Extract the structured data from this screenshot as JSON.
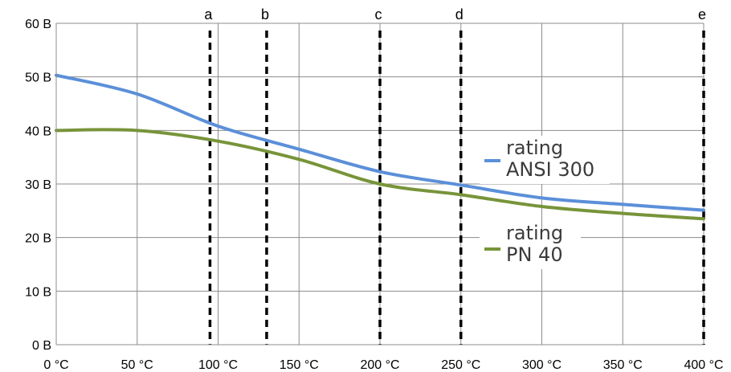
{
  "chart_data": {
    "type": "line",
    "x_unit": "°C",
    "y_unit": "B",
    "xlim": [
      0,
      400
    ],
    "ylim": [
      0,
      60
    ],
    "x_ticks": [
      0,
      50,
      100,
      150,
      200,
      250,
      300,
      350,
      400
    ],
    "y_ticks": [
      0,
      10,
      20,
      30,
      40,
      50,
      60
    ],
    "x_tick_labels": [
      "0 °C",
      "50 °C",
      "100 °C",
      "150 °C",
      "200 °C",
      "250 °C",
      "300 °C",
      "350 °C",
      "400 °C"
    ],
    "y_tick_labels": [
      "0 B",
      "10 B",
      "20 B",
      "30 B",
      "40 B",
      "50 B",
      "60 B"
    ],
    "grid": true,
    "series": [
      {
        "name": "rating ANSI 300",
        "legend_lines": [
          "rating",
          "ANSI 300"
        ],
        "color": "#5b8fd9",
        "x": [
          0,
          50,
          100,
          150,
          200,
          250,
          300,
          350,
          400
        ],
        "values": [
          50.3,
          46.8,
          40.8,
          36.5,
          32.3,
          29.8,
          27.4,
          26.2,
          25.1
        ]
      },
      {
        "name": "rating PN 40",
        "legend_lines": [
          "rating",
          "PN 40"
        ],
        "color": "#77943a",
        "x": [
          0,
          50,
          100,
          150,
          200,
          250,
          300,
          350,
          400
        ],
        "values": [
          40.0,
          40.0,
          38.0,
          34.6,
          30.0,
          28.0,
          25.8,
          24.5,
          23.5
        ]
      }
    ],
    "markers": [
      {
        "label": "a",
        "x": 95
      },
      {
        "label": "b",
        "x": 130
      },
      {
        "label": "c",
        "x": 200
      },
      {
        "label": "d",
        "x": 250
      },
      {
        "label": "e",
        "x": 400
      }
    ]
  }
}
